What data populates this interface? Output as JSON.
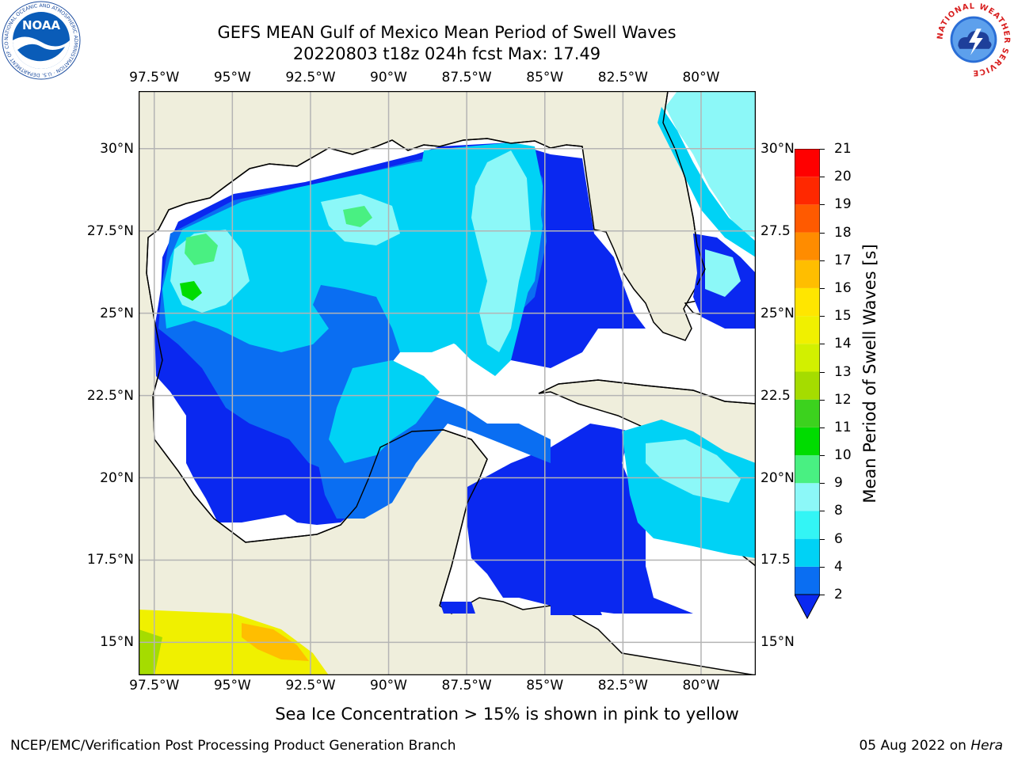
{
  "title": {
    "line1": "GEFS MEAN Gulf of Mexico Mean Period of Swell Waves",
    "line2": "20220803 t18z 024h fcst   Max: 17.49"
  },
  "map": {
    "lon_labels": [
      "97.5°W",
      "95°W",
      "92.5°W",
      "90°W",
      "87.5°W",
      "85°W",
      "82.5°W",
      "80°W"
    ],
    "lon_values": [
      -97.5,
      -95,
      -92.5,
      -90,
      -87.5,
      -85,
      -82.5,
      -80
    ],
    "lat_labels_left": [
      "30°N",
      "27.5°N",
      "25°N",
      "22.5°N",
      "20°N",
      "17.5°N",
      "15°N"
    ],
    "lat_labels_right": [
      "30°N",
      "27.5",
      "25°N",
      "22.5",
      "20°N",
      "17.5",
      "15°N"
    ],
    "lat_values": [
      30,
      27.5,
      25,
      22.5,
      20,
      17.5,
      15
    ],
    "extent": {
      "lon_min": -98,
      "lon_max": -78.25,
      "lat_min": 14,
      "lat_max": 31.75
    },
    "land_color": "#efeedc",
    "ocean_color": "#ffffff",
    "grid_color": "#b4b4b4",
    "gridlines": true
  },
  "colorbar": {
    "label": "Mean Period of Swell Waves [s]",
    "ticks": [
      "2",
      "4",
      "6",
      "8",
      "9",
      "10",
      "11",
      "12",
      "13",
      "14",
      "15",
      "16",
      "17",
      "18",
      "19",
      "20",
      "21"
    ],
    "colors": [
      "#0a28f0",
      "#0a6ef2",
      "#00d2f5",
      "#33f5f5",
      "#8cf8f8",
      "#49f082",
      "#00dc00",
      "#3cd21e",
      "#a5dc00",
      "#d2f000",
      "#f0f000",
      "#ffe600",
      "#ffbe00",
      "#ff8c00",
      "#ff5a00",
      "#ff2800",
      "#ff0000"
    ],
    "extend": "min"
  },
  "note": "Sea Ice Concentration > 15% is shown in pink to yellow",
  "footer": {
    "left": "NCEP/EMC/Verification Post Processing Product Generation Branch",
    "right_date": "05 Aug 2022 on ",
    "right_host": "Hera"
  },
  "logos": {
    "left": "noaa-logo",
    "right": "national-weather-service-logo",
    "left_ring_text": "NATIONAL OCEANIC AND ATMOSPHERIC ADMINISTRATION · U.S. DEPARTMENT OF COMMERCE",
    "left_center_text": "NOAA",
    "right_ring_text": "NATIONAL WEATHER SERVICE"
  }
}
